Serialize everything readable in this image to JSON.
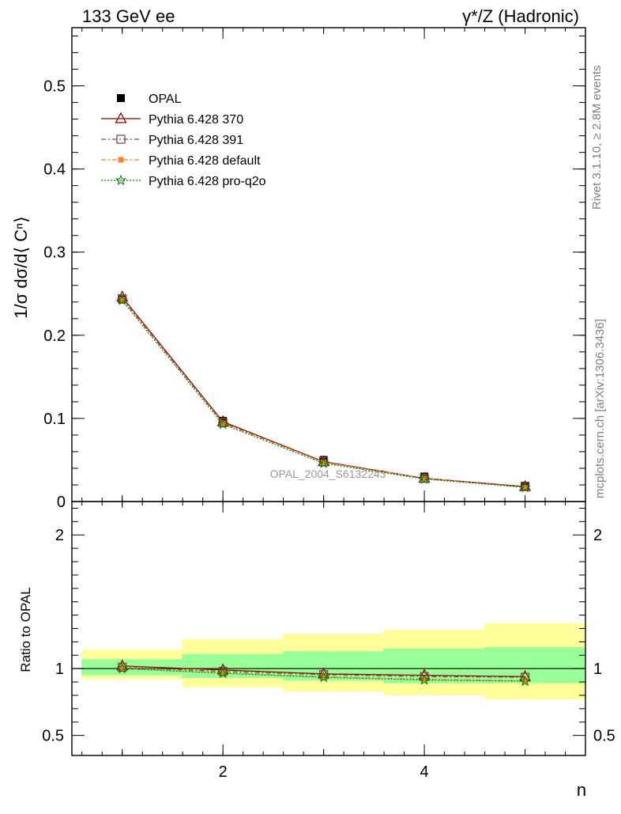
{
  "header": {
    "left": "133 GeV ee",
    "right": "γ*/Z (Hadronic)"
  },
  "side_labels": {
    "rivet": "Rivet 3.1.10, ≥ 2.8M events",
    "mcplots": "mcplots.cern.ch [arXiv:1306.3436]"
  },
  "watermark": "OPAL_2004_S6132243",
  "colors": {
    "opal": "#000000",
    "p370": "#8b0000",
    "p391": "#7a4a4a",
    "default": "#ff7f2a",
    "proq2o": "#008000",
    "band_inner": "#99ff99",
    "band_outer": "#ffff99"
  },
  "chart_data": [
    {
      "type": "scatter",
      "title": "",
      "ylabel": "1/σ dσ/d⟨ Cⁿ⟩",
      "xlabel": "",
      "xlim": [
        0.5,
        5.6
      ],
      "ylim": [
        0,
        0.57
      ],
      "y_ticks": [
        "0",
        "0.1",
        "0.2",
        "0.3",
        "0.4",
        "0.5"
      ],
      "x": [
        1,
        2,
        3,
        4,
        5
      ],
      "legend_position": "top-left",
      "series": [
        {
          "name": "OPAL",
          "values": [
            0.243,
            0.097,
            0.05,
            0.03,
            0.019
          ]
        },
        {
          "name": "Pythia 6.428 370",
          "values": [
            0.246,
            0.096,
            0.048,
            0.028,
            0.018
          ]
        },
        {
          "name": "Pythia 6.428 391",
          "values": [
            0.244,
            0.095,
            0.048,
            0.028,
            0.018
          ]
        },
        {
          "name": "Pythia 6.428 default",
          "values": [
            0.243,
            0.094,
            0.047,
            0.028,
            0.017
          ]
        },
        {
          "name": "Pythia 6.428 pro-q2o",
          "values": [
            0.242,
            0.093,
            0.046,
            0.027,
            0.017
          ]
        }
      ]
    },
    {
      "type": "line",
      "title": "",
      "ylabel": "Ratio to OPAL",
      "xlabel": "n",
      "xlim": [
        0.5,
        5.6
      ],
      "ylim": [
        0.35,
        2.25
      ],
      "y_ticks": [
        "0.5",
        "1",
        "2"
      ],
      "x_ticks": [
        "2",
        "4"
      ],
      "x": [
        1,
        2,
        3,
        4,
        5
      ],
      "bin_edges": [
        0.5,
        1.5,
        2.5,
        3.5,
        4.5,
        5.5
      ],
      "band_inner": [
        [
          0.95,
          1.07
        ],
        [
          0.93,
          1.11
        ],
        [
          0.91,
          1.13
        ],
        [
          0.89,
          1.15
        ],
        [
          0.89,
          1.16
        ]
      ],
      "band_outer": [
        [
          0.92,
          1.14
        ],
        [
          0.86,
          1.22
        ],
        [
          0.83,
          1.26
        ],
        [
          0.8,
          1.29
        ],
        [
          0.77,
          1.34
        ]
      ],
      "series": [
        {
          "name": "Pythia 6.428 370",
          "values": [
            1.02,
            0.99,
            0.96,
            0.95,
            0.94
          ]
        },
        {
          "name": "Pythia 6.428 391",
          "values": [
            1.01,
            0.98,
            0.955,
            0.94,
            0.935
          ]
        },
        {
          "name": "Pythia 6.428 default",
          "values": [
            1.005,
            0.97,
            0.94,
            0.92,
            0.91
          ]
        },
        {
          "name": "Pythia 6.428 pro-q2o",
          "values": [
            1.0,
            0.965,
            0.935,
            0.915,
            0.905
          ]
        }
      ]
    }
  ]
}
